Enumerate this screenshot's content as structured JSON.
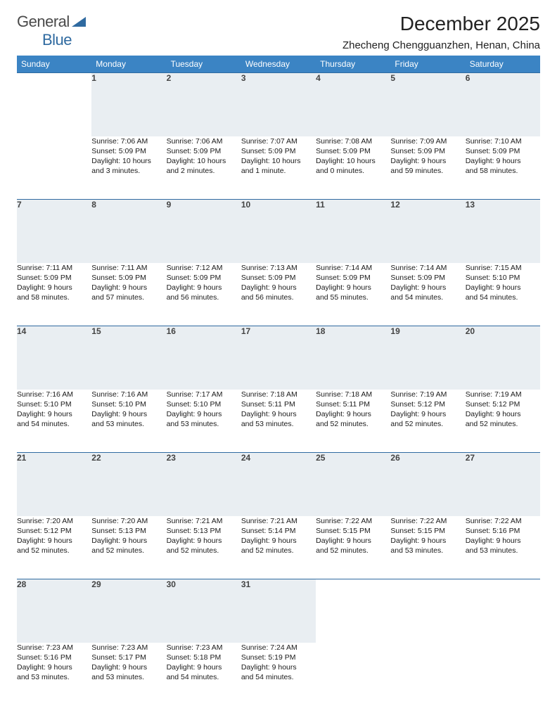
{
  "logo": {
    "text1": "General",
    "text2": "Blue",
    "color_general": "#555558",
    "color_blue": "#2f6aa0",
    "triangle_color": "#2f6aa0"
  },
  "title": "December 2025",
  "location": "Zhecheng Chengguanzhen, Henan, China",
  "header_bg": "#3b84c4",
  "daynum_bg": "#e9eef2",
  "border_color": "#2f6aa0",
  "weekdays": [
    "Sunday",
    "Monday",
    "Tuesday",
    "Wednesday",
    "Thursday",
    "Friday",
    "Saturday"
  ],
  "weeks": [
    [
      null,
      {
        "n": "1",
        "sr": "Sunrise: 7:06 AM",
        "ss": "Sunset: 5:09 PM",
        "d1": "Daylight: 10 hours",
        "d2": "and 3 minutes."
      },
      {
        "n": "2",
        "sr": "Sunrise: 7:06 AM",
        "ss": "Sunset: 5:09 PM",
        "d1": "Daylight: 10 hours",
        "d2": "and 2 minutes."
      },
      {
        "n": "3",
        "sr": "Sunrise: 7:07 AM",
        "ss": "Sunset: 5:09 PM",
        "d1": "Daylight: 10 hours",
        "d2": "and 1 minute."
      },
      {
        "n": "4",
        "sr": "Sunrise: 7:08 AM",
        "ss": "Sunset: 5:09 PM",
        "d1": "Daylight: 10 hours",
        "d2": "and 0 minutes."
      },
      {
        "n": "5",
        "sr": "Sunrise: 7:09 AM",
        "ss": "Sunset: 5:09 PM",
        "d1": "Daylight: 9 hours",
        "d2": "and 59 minutes."
      },
      {
        "n": "6",
        "sr": "Sunrise: 7:10 AM",
        "ss": "Sunset: 5:09 PM",
        "d1": "Daylight: 9 hours",
        "d2": "and 58 minutes."
      }
    ],
    [
      {
        "n": "7",
        "sr": "Sunrise: 7:11 AM",
        "ss": "Sunset: 5:09 PM",
        "d1": "Daylight: 9 hours",
        "d2": "and 58 minutes."
      },
      {
        "n": "8",
        "sr": "Sunrise: 7:11 AM",
        "ss": "Sunset: 5:09 PM",
        "d1": "Daylight: 9 hours",
        "d2": "and 57 minutes."
      },
      {
        "n": "9",
        "sr": "Sunrise: 7:12 AM",
        "ss": "Sunset: 5:09 PM",
        "d1": "Daylight: 9 hours",
        "d2": "and 56 minutes."
      },
      {
        "n": "10",
        "sr": "Sunrise: 7:13 AM",
        "ss": "Sunset: 5:09 PM",
        "d1": "Daylight: 9 hours",
        "d2": "and 56 minutes."
      },
      {
        "n": "11",
        "sr": "Sunrise: 7:14 AM",
        "ss": "Sunset: 5:09 PM",
        "d1": "Daylight: 9 hours",
        "d2": "and 55 minutes."
      },
      {
        "n": "12",
        "sr": "Sunrise: 7:14 AM",
        "ss": "Sunset: 5:09 PM",
        "d1": "Daylight: 9 hours",
        "d2": "and 54 minutes."
      },
      {
        "n": "13",
        "sr": "Sunrise: 7:15 AM",
        "ss": "Sunset: 5:10 PM",
        "d1": "Daylight: 9 hours",
        "d2": "and 54 minutes."
      }
    ],
    [
      {
        "n": "14",
        "sr": "Sunrise: 7:16 AM",
        "ss": "Sunset: 5:10 PM",
        "d1": "Daylight: 9 hours",
        "d2": "and 54 minutes."
      },
      {
        "n": "15",
        "sr": "Sunrise: 7:16 AM",
        "ss": "Sunset: 5:10 PM",
        "d1": "Daylight: 9 hours",
        "d2": "and 53 minutes."
      },
      {
        "n": "16",
        "sr": "Sunrise: 7:17 AM",
        "ss": "Sunset: 5:10 PM",
        "d1": "Daylight: 9 hours",
        "d2": "and 53 minutes."
      },
      {
        "n": "17",
        "sr": "Sunrise: 7:18 AM",
        "ss": "Sunset: 5:11 PM",
        "d1": "Daylight: 9 hours",
        "d2": "and 53 minutes."
      },
      {
        "n": "18",
        "sr": "Sunrise: 7:18 AM",
        "ss": "Sunset: 5:11 PM",
        "d1": "Daylight: 9 hours",
        "d2": "and 52 minutes."
      },
      {
        "n": "19",
        "sr": "Sunrise: 7:19 AM",
        "ss": "Sunset: 5:12 PM",
        "d1": "Daylight: 9 hours",
        "d2": "and 52 minutes."
      },
      {
        "n": "20",
        "sr": "Sunrise: 7:19 AM",
        "ss": "Sunset: 5:12 PM",
        "d1": "Daylight: 9 hours",
        "d2": "and 52 minutes."
      }
    ],
    [
      {
        "n": "21",
        "sr": "Sunrise: 7:20 AM",
        "ss": "Sunset: 5:12 PM",
        "d1": "Daylight: 9 hours",
        "d2": "and 52 minutes."
      },
      {
        "n": "22",
        "sr": "Sunrise: 7:20 AM",
        "ss": "Sunset: 5:13 PM",
        "d1": "Daylight: 9 hours",
        "d2": "and 52 minutes."
      },
      {
        "n": "23",
        "sr": "Sunrise: 7:21 AM",
        "ss": "Sunset: 5:13 PM",
        "d1": "Daylight: 9 hours",
        "d2": "and 52 minutes."
      },
      {
        "n": "24",
        "sr": "Sunrise: 7:21 AM",
        "ss": "Sunset: 5:14 PM",
        "d1": "Daylight: 9 hours",
        "d2": "and 52 minutes."
      },
      {
        "n": "25",
        "sr": "Sunrise: 7:22 AM",
        "ss": "Sunset: 5:15 PM",
        "d1": "Daylight: 9 hours",
        "d2": "and 52 minutes."
      },
      {
        "n": "26",
        "sr": "Sunrise: 7:22 AM",
        "ss": "Sunset: 5:15 PM",
        "d1": "Daylight: 9 hours",
        "d2": "and 53 minutes."
      },
      {
        "n": "27",
        "sr": "Sunrise: 7:22 AM",
        "ss": "Sunset: 5:16 PM",
        "d1": "Daylight: 9 hours",
        "d2": "and 53 minutes."
      }
    ],
    [
      {
        "n": "28",
        "sr": "Sunrise: 7:23 AM",
        "ss": "Sunset: 5:16 PM",
        "d1": "Daylight: 9 hours",
        "d2": "and 53 minutes."
      },
      {
        "n": "29",
        "sr": "Sunrise: 7:23 AM",
        "ss": "Sunset: 5:17 PM",
        "d1": "Daylight: 9 hours",
        "d2": "and 53 minutes."
      },
      {
        "n": "30",
        "sr": "Sunrise: 7:23 AM",
        "ss": "Sunset: 5:18 PM",
        "d1": "Daylight: 9 hours",
        "d2": "and 54 minutes."
      },
      {
        "n": "31",
        "sr": "Sunrise: 7:24 AM",
        "ss": "Sunset: 5:19 PM",
        "d1": "Daylight: 9 hours",
        "d2": "and 54 minutes."
      },
      null,
      null,
      null
    ]
  ]
}
